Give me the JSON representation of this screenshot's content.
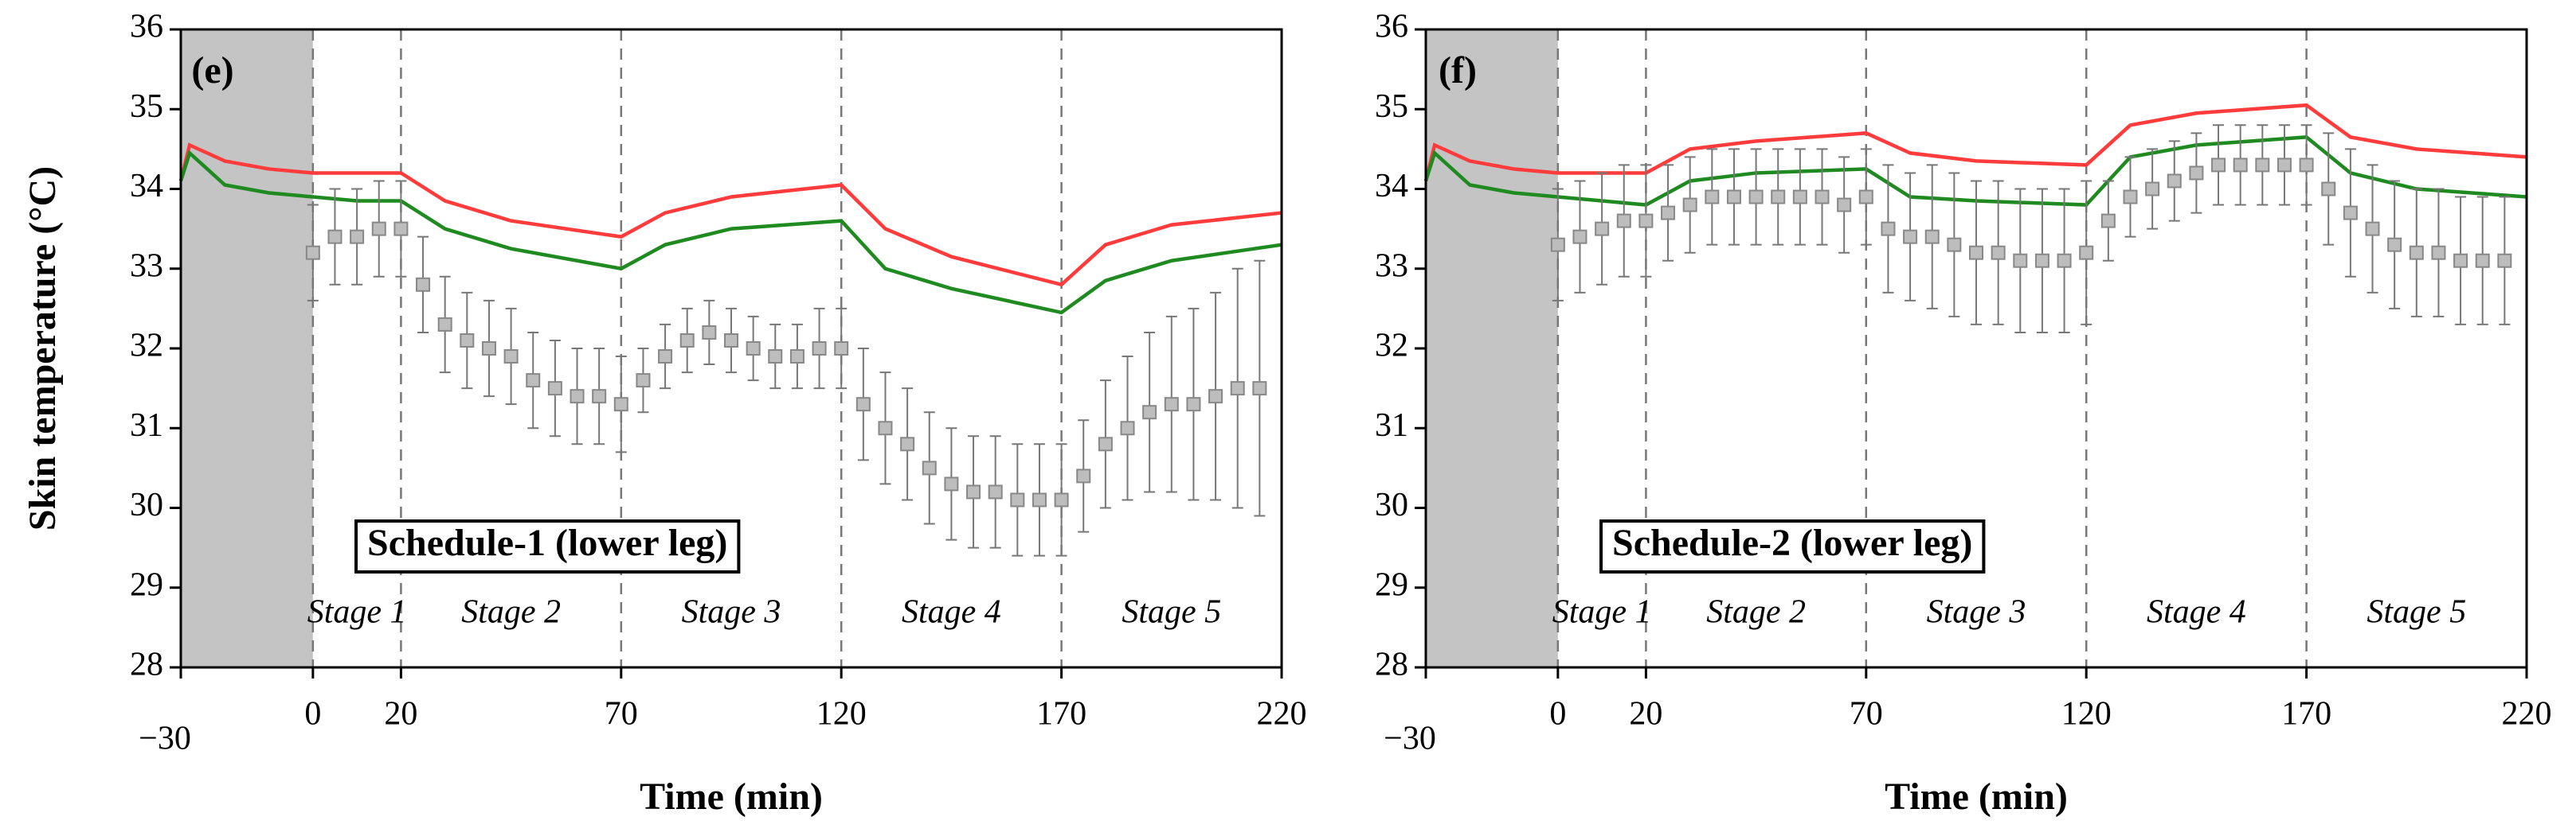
{
  "chart_data": [
    {
      "type": "line",
      "panel_label": "(e)",
      "box_label": "Schedule-1 (lower leg)",
      "xlabel": "Time (min)",
      "ylabel": "Skin temperature (°C)",
      "xlim": [
        -30,
        220
      ],
      "xticks": [
        {
          "value": -30,
          "label": "−30"
        },
        0,
        20,
        70,
        120,
        170,
        220
      ],
      "ylim": [
        28,
        36
      ],
      "yticks": [
        28,
        29,
        30,
        31,
        32,
        33,
        34,
        35,
        36
      ],
      "shaded_region": [
        -30,
        0
      ],
      "stage_boundaries": [
        0,
        20,
        70,
        120,
        170
      ],
      "stage_labels": [
        "Stage 1",
        "Stage 2",
        "Stage 3",
        "Stage 4",
        "Stage 5"
      ],
      "series": [
        {
          "color": "#ff3b3b",
          "x": [
            -30,
            -28,
            -20,
            -10,
            0,
            10,
            20,
            30,
            45,
            70,
            80,
            95,
            120,
            130,
            145,
            170,
            180,
            195,
            220
          ],
          "values": [
            34.1,
            34.55,
            34.35,
            34.25,
            34.2,
            34.2,
            34.2,
            33.85,
            33.6,
            33.4,
            33.7,
            33.9,
            34.05,
            33.5,
            33.15,
            32.8,
            33.3,
            33.55,
            33.7
          ]
        },
        {
          "color": "#1f8a1f",
          "x": [
            -30,
            -28,
            -20,
            -10,
            0,
            10,
            20,
            30,
            45,
            70,
            80,
            95,
            120,
            130,
            145,
            170,
            180,
            195,
            220
          ],
          "values": [
            34.1,
            34.45,
            34.05,
            33.95,
            33.9,
            33.85,
            33.85,
            33.5,
            33.25,
            33.0,
            33.3,
            33.5,
            33.6,
            33.0,
            32.75,
            32.45,
            32.85,
            33.1,
            33.3
          ]
        },
        {
          "color": "#bdbdbd",
          "x": [
            0,
            5,
            10,
            15,
            20,
            25,
            30,
            35,
            40,
            45,
            50,
            55,
            60,
            65,
            70,
            75,
            80,
            85,
            90,
            95,
            100,
            105,
            110,
            115,
            120,
            125,
            130,
            135,
            140,
            145,
            150,
            155,
            160,
            165,
            170,
            175,
            180,
            185,
            190,
            195,
            200,
            205,
            210,
            215
          ],
          "values": [
            33.2,
            33.4,
            33.4,
            33.5,
            33.5,
            32.8,
            32.3,
            32.1,
            32.0,
            31.9,
            31.6,
            31.5,
            31.4,
            31.4,
            31.3,
            31.6,
            31.9,
            32.1,
            32.2,
            32.1,
            32.0,
            31.9,
            31.9,
            32.0,
            32.0,
            31.3,
            31.0,
            30.8,
            30.5,
            30.3,
            30.2,
            30.2,
            30.1,
            30.1,
            30.1,
            30.4,
            30.8,
            31.0,
            31.2,
            31.3,
            31.3,
            31.4,
            31.5,
            31.5
          ],
          "errors": [
            0.6,
            0.6,
            0.6,
            0.6,
            0.6,
            0.6,
            0.6,
            0.6,
            0.6,
            0.6,
            0.6,
            0.6,
            0.6,
            0.6,
            0.6,
            0.4,
            0.4,
            0.4,
            0.4,
            0.4,
            0.4,
            0.4,
            0.4,
            0.5,
            0.5,
            0.7,
            0.7,
            0.7,
            0.7,
            0.7,
            0.7,
            0.7,
            0.7,
            0.7,
            0.7,
            0.7,
            0.8,
            0.9,
            1.0,
            1.1,
            1.2,
            1.3,
            1.5,
            1.6
          ]
        }
      ]
    },
    {
      "type": "line",
      "panel_label": "(f)",
      "box_label": "Schedule-2 (lower leg)",
      "xlabel": "Time (min)",
      "xlim": [
        -30,
        220
      ],
      "xticks": [
        {
          "value": -30,
          "label": "−30"
        },
        0,
        20,
        70,
        120,
        170,
        220
      ],
      "ylim": [
        28,
        36
      ],
      "yticks": [
        28,
        29,
        30,
        31,
        32,
        33,
        34,
        35,
        36
      ],
      "shaded_region": [
        -30,
        0
      ],
      "stage_boundaries": [
        0,
        20,
        70,
        120,
        170
      ],
      "stage_labels": [
        "Stage 1",
        "Stage 2",
        "Stage 3",
        "Stage 4",
        "Stage 5"
      ],
      "series": [
        {
          "color": "#ff3b3b",
          "x": [
            -30,
            -28,
            -20,
            -10,
            0,
            10,
            20,
            30,
            45,
            70,
            80,
            95,
            120,
            130,
            145,
            170,
            180,
            195,
            220
          ],
          "values": [
            34.1,
            34.55,
            34.35,
            34.25,
            34.2,
            34.2,
            34.2,
            34.5,
            34.6,
            34.7,
            34.45,
            34.35,
            34.3,
            34.8,
            34.95,
            35.05,
            34.65,
            34.5,
            34.4
          ]
        },
        {
          "color": "#1f8a1f",
          "x": [
            -30,
            -28,
            -20,
            -10,
            0,
            10,
            20,
            30,
            45,
            70,
            80,
            95,
            120,
            130,
            145,
            170,
            180,
            195,
            220
          ],
          "values": [
            34.1,
            34.45,
            34.05,
            33.95,
            33.9,
            33.85,
            33.8,
            34.1,
            34.2,
            34.25,
            33.9,
            33.85,
            33.8,
            34.4,
            34.55,
            34.65,
            34.2,
            34.0,
            33.9
          ]
        },
        {
          "color": "#bdbdbd",
          "x": [
            0,
            5,
            10,
            15,
            20,
            25,
            30,
            35,
            40,
            45,
            50,
            55,
            60,
            65,
            70,
            75,
            80,
            85,
            90,
            95,
            100,
            105,
            110,
            115,
            120,
            125,
            130,
            135,
            140,
            145,
            150,
            155,
            160,
            165,
            170,
            175,
            180,
            185,
            190,
            195,
            200,
            205,
            210,
            215
          ],
          "values": [
            33.3,
            33.4,
            33.5,
            33.6,
            33.6,
            33.7,
            33.8,
            33.9,
            33.9,
            33.9,
            33.9,
            33.9,
            33.9,
            33.8,
            33.9,
            33.5,
            33.4,
            33.4,
            33.3,
            33.2,
            33.2,
            33.1,
            33.1,
            33.1,
            33.2,
            33.6,
            33.9,
            34.0,
            34.1,
            34.2,
            34.3,
            34.3,
            34.3,
            34.3,
            34.3,
            34.0,
            33.7,
            33.5,
            33.3,
            33.2,
            33.2,
            33.1,
            33.1,
            33.1
          ],
          "errors": [
            0.7,
            0.7,
            0.7,
            0.7,
            0.7,
            0.6,
            0.6,
            0.6,
            0.6,
            0.6,
            0.6,
            0.6,
            0.6,
            0.6,
            0.6,
            0.8,
            0.8,
            0.9,
            0.9,
            0.9,
            0.9,
            0.9,
            0.9,
            0.9,
            0.9,
            0.5,
            0.5,
            0.5,
            0.5,
            0.5,
            0.5,
            0.5,
            0.5,
            0.5,
            0.5,
            0.7,
            0.8,
            0.8,
            0.8,
            0.8,
            0.8,
            0.8,
            0.8,
            0.8
          ]
        }
      ]
    }
  ]
}
